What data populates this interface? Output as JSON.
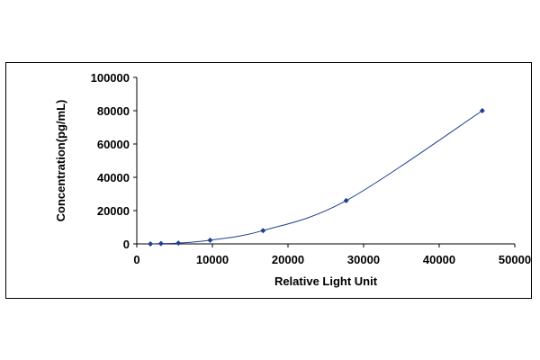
{
  "chart_data": {
    "type": "scatter",
    "title": "",
    "xlabel": "Relative Light Unit",
    "ylabel": "Concentration(pg/mL)",
    "xlim": [
      0,
      50000
    ],
    "ylim": [
      0,
      100000
    ],
    "x_ticks": [
      "0",
      "10000",
      "20000",
      "30000",
      "40000",
      "50000"
    ],
    "y_ticks": [
      "0",
      "20000",
      "40000",
      "60000",
      "80000",
      "100000"
    ],
    "grid": false,
    "legend": "none",
    "marker_color": "#1f3f8f",
    "line_color": "#1f3f8f",
    "series": [
      {
        "x": [
          1800,
          3200,
          5500,
          9700,
          16700,
          27700,
          45700
        ],
        "y": [
          0,
          200,
          500,
          2200,
          8000,
          26000,
          80000
        ]
      }
    ]
  }
}
